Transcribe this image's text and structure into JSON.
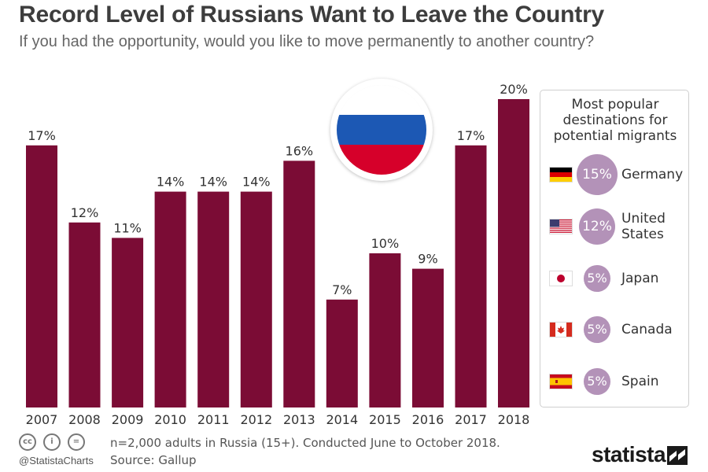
{
  "title": "Record Level of Russians Want to Leave the Country",
  "subtitle": "If you had the opportunity, would you like to move permanently to another country?",
  "chart_data": {
    "type": "bar",
    "categories": [
      "2007",
      "2008",
      "2009",
      "2010",
      "2011",
      "2012",
      "2013",
      "2014",
      "2015",
      "2016",
      "2017",
      "2018"
    ],
    "values": [
      17,
      12,
      11,
      14,
      14,
      14,
      16,
      7,
      10,
      9,
      17,
      20
    ],
    "value_labels": [
      "17%",
      "12%",
      "11%",
      "14%",
      "14%",
      "14%",
      "16%",
      "7%",
      "10%",
      "9%",
      "17%",
      "20%"
    ],
    "unit": "%",
    "bar_color": "#7b0c35",
    "ylim": [
      0,
      20
    ],
    "grid": false
  },
  "russia_flag": {
    "colors": [
      "#ffffff",
      "#1c58b4",
      "#d6002a"
    ]
  },
  "destinations": {
    "title_lines": [
      "Most popular",
      "destinations for",
      "potential migrants"
    ],
    "badge_color": "#b392b8",
    "items": [
      {
        "country": "Germany",
        "name_lines": [
          "Germany"
        ],
        "percent": "15%",
        "share": 15,
        "flag": "germany-flag"
      },
      {
        "country": "United States",
        "name_lines": [
          "United",
          "States"
        ],
        "percent": "12%",
        "share": 12,
        "flag": "usa-flag"
      },
      {
        "country": "Japan",
        "name_lines": [
          "Japan"
        ],
        "percent": "5%",
        "share": 5,
        "flag": "japan-flag"
      },
      {
        "country": "Canada",
        "name_lines": [
          "Canada"
        ],
        "percent": "5%",
        "share": 5,
        "flag": "canada-flag"
      },
      {
        "country": "Spain",
        "name_lines": [
          "Spain"
        ],
        "percent": "5%",
        "share": 5,
        "flag": "spain-flag"
      }
    ]
  },
  "footer": {
    "cc_icons": [
      "cc-icon",
      "attribution-icon",
      "no-derivatives-icon"
    ],
    "cc_marks": [
      "cc",
      "i",
      "="
    ],
    "handle": "@StatistaCharts",
    "note": "n=2,000 adults in Russia (15+). Conducted June to October 2018.",
    "source": "Source: Gallup",
    "brand": "statista"
  }
}
